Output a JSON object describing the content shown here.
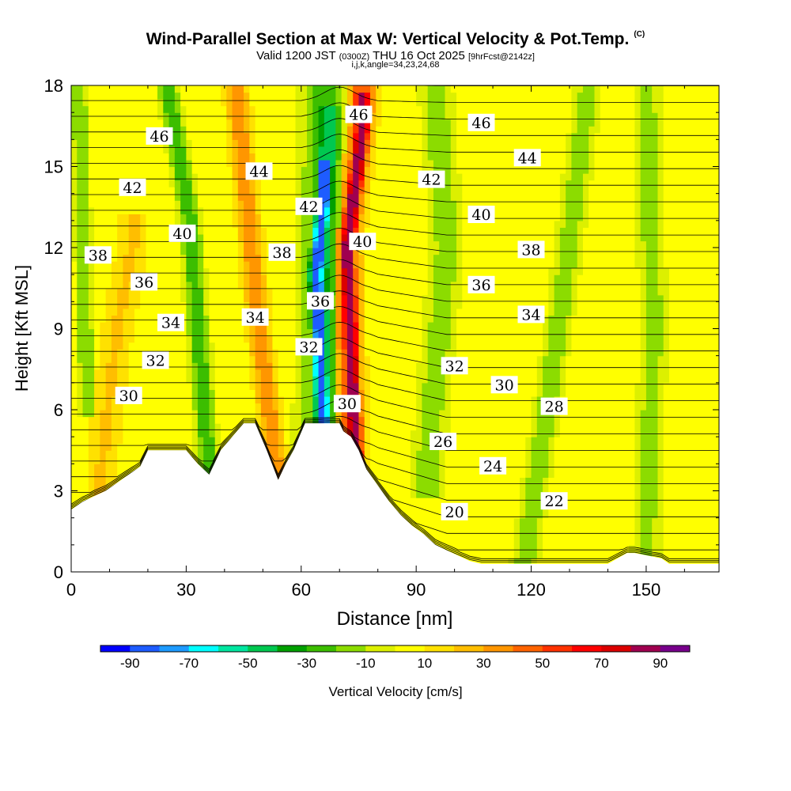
{
  "title": "Wind-Parallel Section at Max W: Vertical Velocity & Pot.Temp.",
  "copyright_mark": "(C)",
  "subtitle": {
    "valid": "Valid 1200 JST",
    "utc": "(0300Z)",
    "date": "THU 16 Oct 2025",
    "fcst": "[9hrFcst@2142z]"
  },
  "subline": "i,j,k,angle=34,23,24,68",
  "chart_data": {
    "type": "heatmap",
    "xlabel": "Distance [nm]",
    "ylabel": "Height [Kft MSL]",
    "xlim": [
      0,
      169
    ],
    "ylim": [
      0,
      18
    ],
    "x_ticks": [
      "0",
      "30",
      "60",
      "90",
      "120",
      "150"
    ],
    "x_tick_values": [
      0,
      30,
      60,
      90,
      120,
      150
    ],
    "y_ticks": [
      "0",
      "3",
      "6",
      "9",
      "12",
      "15",
      "18"
    ],
    "y_tick_values": [
      0,
      3,
      6,
      9,
      12,
      15,
      18
    ],
    "colorbar": {
      "label": "Vertical Velocity [cm/s]",
      "range": [
        -100,
        100
      ],
      "tick_labels": [
        "-90",
        "-70",
        "-50",
        "-30",
        "-10",
        "10",
        "30",
        "50",
        "70",
        "90"
      ],
      "colors": [
        "#0000ff",
        "#1e5cff",
        "#1e9bff",
        "#00ffff",
        "#00e6a0",
        "#00c850",
        "#00a000",
        "#3cbe00",
        "#8cdc00",
        "#dcf000",
        "#ffff00",
        "#ffe100",
        "#ffbe00",
        "#ff9600",
        "#ff6400",
        "#ff3200",
        "#ff0000",
        "#dc0000",
        "#a00050",
        "#78008c"
      ]
    },
    "background_value": 7,
    "w_features": [
      {
        "name": "updraft-core",
        "points": [
          [
            74,
            4.5
          ],
          [
            72,
            12
          ],
          [
            76,
            16.5
          ]
        ],
        "width": 3,
        "value": 85
      },
      {
        "name": "updraft-halo",
        "points": [
          [
            73,
            4.5
          ],
          [
            72,
            12
          ],
          [
            76,
            17
          ]
        ],
        "width": 5,
        "value": 45
      },
      {
        "name": "downdraft-core",
        "points": [
          [
            66,
            4.5
          ],
          [
            64,
            11
          ],
          [
            66,
            14
          ]
        ],
        "width": 3,
        "value": -85
      },
      {
        "name": "downdraft-halo",
        "points": [
          [
            66,
            4.5
          ],
          [
            65,
            11
          ],
          [
            67,
            16
          ]
        ],
        "width": 5,
        "value": -45
      },
      {
        "name": "outer-sink",
        "points": [
          [
            65,
            4.5
          ],
          [
            66,
            17
          ]
        ],
        "width": 9,
        "value": -22
      },
      {
        "name": "lee-rise",
        "points": [
          [
            54,
            3.2
          ],
          [
            49,
            9
          ],
          [
            43,
            18
          ]
        ],
        "width": 4,
        "value": 35
      },
      {
        "name": "lee-sink",
        "points": [
          [
            36,
            3.5
          ],
          [
            31,
            13
          ],
          [
            25,
            18
          ]
        ],
        "width": 4,
        "value": -25
      },
      {
        "name": "west-sink",
        "points": [
          [
            4,
            7
          ],
          [
            2,
            18
          ]
        ],
        "width": 3,
        "value": -20
      },
      {
        "name": "east-sink-1",
        "points": [
          [
            93,
            4
          ],
          [
            98,
            12
          ],
          [
            95,
            18
          ]
        ],
        "width": 6,
        "value": -15
      },
      {
        "name": "east-sink-2",
        "points": [
          [
            118,
            0
          ],
          [
            128,
            10
          ],
          [
            135,
            18
          ]
        ],
        "width": 5,
        "value": -15
      },
      {
        "name": "east-sink-3",
        "points": [
          [
            150,
            1
          ],
          [
            152,
            9
          ],
          [
            150,
            18
          ]
        ],
        "width": 5,
        "value": -14
      },
      {
        "name": "west-warm",
        "points": [
          [
            8,
            4
          ],
          [
            12,
            9
          ],
          [
            16,
            12
          ]
        ],
        "width": 5,
        "value": 20
      }
    ],
    "theta_contours": [
      {
        "label": "20",
        "value": 20,
        "label_at": [
          100,
          2.2
        ]
      },
      {
        "label": "22",
        "value": 22,
        "label_at": [
          126,
          2.6
        ]
      },
      {
        "label": "24",
        "value": 24,
        "label_at": [
          110,
          3.9
        ]
      },
      {
        "label": "26",
        "value": 26,
        "label_at": [
          97,
          4.8
        ]
      },
      {
        "label": "28",
        "value": 28,
        "label_at": [
          126,
          6.1
        ]
      },
      {
        "label": "30",
        "value": 30,
        "label_at": [
          15,
          6.5
        ]
      },
      {
        "label": "30",
        "value": 30,
        "label_at": [
          72,
          6.2
        ]
      },
      {
        "label": "30",
        "value": 30,
        "label_at": [
          113,
          6.9
        ]
      },
      {
        "label": "32",
        "value": 32,
        "label_at": [
          22,
          7.8
        ]
      },
      {
        "label": "32",
        "value": 32,
        "label_at": [
          62,
          8.3
        ]
      },
      {
        "label": "32",
        "value": 32,
        "label_at": [
          100,
          7.6
        ]
      },
      {
        "label": "34",
        "value": 34,
        "label_at": [
          26,
          9.2
        ]
      },
      {
        "label": "34",
        "value": 34,
        "label_at": [
          48,
          9.4
        ]
      },
      {
        "label": "34",
        "value": 34,
        "label_at": [
          120,
          9.5
        ]
      },
      {
        "label": "36",
        "value": 36,
        "label_at": [
          19,
          10.7
        ]
      },
      {
        "label": "36",
        "value": 36,
        "label_at": [
          65,
          10.0
        ]
      },
      {
        "label": "36",
        "value": 36,
        "label_at": [
          107,
          10.6
        ]
      },
      {
        "label": "38",
        "value": 38,
        "label_at": [
          7,
          11.7
        ]
      },
      {
        "label": "38",
        "value": 38,
        "label_at": [
          55,
          11.8
        ]
      },
      {
        "label": "38",
        "value": 38,
        "label_at": [
          120,
          11.9
        ]
      },
      {
        "label": "40",
        "value": 40,
        "label_at": [
          29,
          12.5
        ]
      },
      {
        "label": "40",
        "value": 40,
        "label_at": [
          76,
          12.2
        ]
      },
      {
        "label": "40",
        "value": 40,
        "label_at": [
          107,
          13.2
        ]
      },
      {
        "label": "42",
        "value": 42,
        "label_at": [
          16,
          14.2
        ]
      },
      {
        "label": "42",
        "value": 42,
        "label_at": [
          62,
          13.5
        ]
      },
      {
        "label": "42",
        "value": 42,
        "label_at": [
          94,
          14.5
        ]
      },
      {
        "label": "44",
        "value": 44,
        "label_at": [
          49,
          14.8
        ]
      },
      {
        "label": "44",
        "value": 44,
        "label_at": [
          119,
          15.3
        ]
      },
      {
        "label": "46",
        "value": 46,
        "label_at": [
          23,
          16.1
        ]
      },
      {
        "label": "46",
        "value": 46,
        "label_at": [
          75,
          16.9
        ]
      },
      {
        "label": "46",
        "value": 46,
        "label_at": [
          107,
          16.6
        ]
      }
    ],
    "terrain": {
      "x": [
        0,
        3,
        6,
        9,
        12,
        15,
        18,
        20,
        30,
        33,
        36,
        39,
        42,
        45,
        48,
        51,
        54,
        56,
        58,
        61,
        64,
        67,
        70,
        71,
        73,
        75,
        77,
        80,
        83,
        86,
        89,
        92,
        95,
        98,
        101,
        104,
        107,
        110,
        130,
        140,
        145,
        147,
        154,
        156,
        160,
        169
      ],
      "height_kft": [
        2.3,
        2.6,
        2.8,
        3.0,
        3.3,
        3.6,
        3.9,
        4.5,
        4.5,
        4.0,
        3.6,
        4.5,
        5.0,
        5.5,
        5.5,
        4.5,
        3.4,
        4.0,
        4.5,
        5.5,
        5.5,
        5.5,
        5.5,
        5.2,
        5.0,
        4.5,
        3.8,
        3.2,
        2.6,
        2.1,
        1.7,
        1.4,
        1.0,
        0.8,
        0.6,
        0.4,
        0.3,
        0.3,
        0.3,
        0.3,
        0.7,
        0.7,
        0.5,
        0.3,
        0.3,
        0.3
      ]
    }
  }
}
